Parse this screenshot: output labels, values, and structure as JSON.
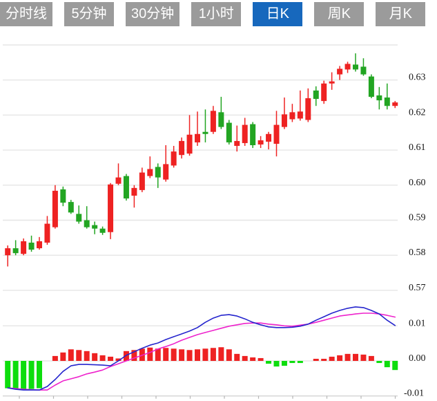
{
  "toolbar": {
    "active_index": 4,
    "tabs": [
      {
        "label": "分时线"
      },
      {
        "label": "5分钟"
      },
      {
        "label": "30分钟"
      },
      {
        "label": "1小时"
      },
      {
        "label": "日K"
      },
      {
        "label": "周K"
      },
      {
        "label": "月K"
      }
    ]
  },
  "colors": {
    "tab_inactive": "#9b9b9b",
    "tab_active": "#1768bd",
    "up": "#ee2222",
    "down": "#22a522",
    "hist_down": "#0ddd0d",
    "dif_line": "#2424cd",
    "dea_line": "#ee22cc",
    "gridline": "#e5e5e5",
    "axis_line": "#d8d8d8",
    "tick": "#b5b5b5",
    "axis_text": "#151515"
  },
  "chart_data": [
    {
      "type": "candlestick",
      "panel": "price",
      "title": "",
      "grid": "on",
      "legend_position": "none",
      "y_axis_side": "right",
      "y_gridline_values": [
        0.64,
        0.63,
        0.62,
        0.61,
        0.6,
        0.59,
        0.58,
        0.57
      ],
      "y_tick_labels": [
        "0.63",
        "0.62",
        "0.61",
        "0.60",
        "0.59",
        "0.58",
        "0.57"
      ],
      "y_tick_values": [
        0.63,
        0.62,
        0.61,
        0.6,
        0.59,
        0.58,
        0.57
      ],
      "ylim": [
        0.5655,
        0.6405
      ],
      "up_means": "close>=open is red (CN convention)",
      "candles": [
        {
          "o": 0.58,
          "h": 0.5828,
          "l": 0.5768,
          "c": 0.582
        },
        {
          "o": 0.582,
          "h": 0.5843,
          "l": 0.58,
          "c": 0.5806
        },
        {
          "o": 0.5804,
          "h": 0.5848,
          "l": 0.58,
          "c": 0.584
        },
        {
          "o": 0.5836,
          "h": 0.5856,
          "l": 0.581,
          "c": 0.5816
        },
        {
          "o": 0.582,
          "h": 0.5852,
          "l": 0.5816,
          "c": 0.584
        },
        {
          "o": 0.5836,
          "h": 0.5912,
          "l": 0.583,
          "c": 0.589
        },
        {
          "o": 0.588,
          "h": 0.6,
          "l": 0.5876,
          "c": 0.5984
        },
        {
          "o": 0.5988,
          "h": 0.5996,
          "l": 0.594,
          "c": 0.595
        },
        {
          "o": 0.5952,
          "h": 0.5958,
          "l": 0.5918,
          "c": 0.5922
        },
        {
          "o": 0.5918,
          "h": 0.5942,
          "l": 0.589,
          "c": 0.5896
        },
        {
          "o": 0.59,
          "h": 0.594,
          "l": 0.5876,
          "c": 0.588
        },
        {
          "o": 0.5886,
          "h": 0.5896,
          "l": 0.586,
          "c": 0.5876
        },
        {
          "o": 0.5876,
          "h": 0.5882,
          "l": 0.5858,
          "c": 0.5864
        },
        {
          "o": 0.5866,
          "h": 0.6006,
          "l": 0.5846,
          "c": 0.6002
        },
        {
          "o": 0.6004,
          "h": 0.6062,
          "l": 0.6,
          "c": 0.6022
        },
        {
          "o": 0.6026,
          "h": 0.6032,
          "l": 0.5956,
          "c": 0.5962
        },
        {
          "o": 0.597,
          "h": 0.6,
          "l": 0.5936,
          "c": 0.5992
        },
        {
          "o": 0.5986,
          "h": 0.605,
          "l": 0.598,
          "c": 0.6036
        },
        {
          "o": 0.6026,
          "h": 0.6082,
          "l": 0.602,
          "c": 0.6046
        },
        {
          "o": 0.6052,
          "h": 0.6062,
          "l": 0.5992,
          "c": 0.6022
        },
        {
          "o": 0.6016,
          "h": 0.6114,
          "l": 0.601,
          "c": 0.606
        },
        {
          "o": 0.6056,
          "h": 0.6112,
          "l": 0.605,
          "c": 0.6096
        },
        {
          "o": 0.6086,
          "h": 0.6136,
          "l": 0.6076,
          "c": 0.6126
        },
        {
          "o": 0.609,
          "h": 0.62,
          "l": 0.6084,
          "c": 0.6144
        },
        {
          "o": 0.6122,
          "h": 0.621,
          "l": 0.6112,
          "c": 0.6146
        },
        {
          "o": 0.6152,
          "h": 0.6216,
          "l": 0.6122,
          "c": 0.6146
        },
        {
          "o": 0.6152,
          "h": 0.6226,
          "l": 0.6146,
          "c": 0.6212
        },
        {
          "o": 0.6208,
          "h": 0.6252,
          "l": 0.616,
          "c": 0.6166
        },
        {
          "o": 0.6178,
          "h": 0.6186,
          "l": 0.6116,
          "c": 0.6122
        },
        {
          "o": 0.6112,
          "h": 0.617,
          "l": 0.6096,
          "c": 0.6126
        },
        {
          "o": 0.612,
          "h": 0.6192,
          "l": 0.6112,
          "c": 0.6172
        },
        {
          "o": 0.6174,
          "h": 0.618,
          "l": 0.6106,
          "c": 0.6114
        },
        {
          "o": 0.6116,
          "h": 0.614,
          "l": 0.6106,
          "c": 0.6128
        },
        {
          "o": 0.6124,
          "h": 0.6152,
          "l": 0.6102,
          "c": 0.6146
        },
        {
          "o": 0.6118,
          "h": 0.6212,
          "l": 0.6082,
          "c": 0.6172
        },
        {
          "o": 0.6166,
          "h": 0.625,
          "l": 0.616,
          "c": 0.6202
        },
        {
          "o": 0.6188,
          "h": 0.6232,
          "l": 0.618,
          "c": 0.6208
        },
        {
          "o": 0.619,
          "h": 0.627,
          "l": 0.6184,
          "c": 0.621
        },
        {
          "o": 0.6186,
          "h": 0.6276,
          "l": 0.618,
          "c": 0.6248
        },
        {
          "o": 0.627,
          "h": 0.6282,
          "l": 0.6226,
          "c": 0.6246
        },
        {
          "o": 0.624,
          "h": 0.6298,
          "l": 0.6232,
          "c": 0.629
        },
        {
          "o": 0.629,
          "h": 0.6322,
          "l": 0.6272,
          "c": 0.6296
        },
        {
          "o": 0.6316,
          "h": 0.634,
          "l": 0.63,
          "c": 0.6332
        },
        {
          "o": 0.633,
          "h": 0.6352,
          "l": 0.632,
          "c": 0.6346
        },
        {
          "o": 0.6344,
          "h": 0.6376,
          "l": 0.6324,
          "c": 0.633
        },
        {
          "o": 0.6338,
          "h": 0.6362,
          "l": 0.6312,
          "c": 0.6316
        },
        {
          "o": 0.631,
          "h": 0.6316,
          "l": 0.6248,
          "c": 0.6252
        },
        {
          "o": 0.6256,
          "h": 0.628,
          "l": 0.6216,
          "c": 0.6242
        },
        {
          "o": 0.625,
          "h": 0.629,
          "l": 0.6216,
          "c": 0.6226
        },
        {
          "o": 0.6226,
          "h": 0.624,
          "l": 0.622,
          "c": 0.6236
        }
      ]
    },
    {
      "type": "macd",
      "panel": "indicator",
      "grid": "on",
      "y_axis_side": "right",
      "y_tick_labels": [
        "0.01",
        "0.00",
        "-0.01"
      ],
      "y_tick_values": [
        0.01,
        0.0,
        -0.01
      ],
      "ylim": [
        -0.011,
        0.016
      ],
      "histogram": [
        -0.0078,
        -0.008,
        -0.0082,
        -0.008,
        -0.0078,
        0.0,
        0.0014,
        0.0024,
        0.0033,
        0.0031,
        0.0028,
        0.0022,
        0.0016,
        0.0012,
        0.0007,
        0.0028,
        0.0031,
        0.0035,
        0.0038,
        0.0035,
        0.0037,
        0.0035,
        0.0033,
        0.0031,
        0.0033,
        0.0035,
        0.0037,
        0.0039,
        0.0033,
        0.002,
        0.0014,
        0.001,
        0.0008,
        -0.0008,
        -0.0016,
        -0.0014,
        -0.0006,
        -0.0006,
        -0.0002,
        0.0006,
        0.0006,
        0.0012,
        0.0016,
        0.002,
        0.002,
        0.0018,
        0.0014,
        -0.0006,
        -0.0018,
        -0.0026
      ],
      "dif": [
        -0.0077,
        -0.0081,
        -0.0083,
        -0.0083,
        -0.0083,
        -0.0073,
        -0.0053,
        -0.003,
        -0.0014,
        -0.001,
        -0.001,
        -0.0011,
        -0.0012,
        -0.0014,
        0.0,
        0.0016,
        0.0026,
        0.0036,
        0.0045,
        0.0051,
        0.0061,
        0.0069,
        0.0077,
        0.0085,
        0.0095,
        0.011,
        0.0122,
        0.013,
        0.0132,
        0.0128,
        0.012,
        0.011,
        0.0103,
        0.0097,
        0.0095,
        0.0095,
        0.0096,
        0.0099,
        0.0105,
        0.0116,
        0.0126,
        0.0136,
        0.0144,
        0.015,
        0.0154,
        0.0152,
        0.0144,
        0.0134,
        0.0116,
        0.0101
      ],
      "dea": [
        -0.0077,
        -0.0079,
        -0.0081,
        -0.0082,
        -0.0083,
        -0.0083,
        -0.0069,
        -0.0057,
        -0.0051,
        -0.0045,
        -0.0037,
        -0.0032,
        -0.0026,
        -0.0016,
        -0.0008,
        0.0,
        0.0008,
        0.0016,
        0.0024,
        0.0034,
        0.0041,
        0.0049,
        0.0059,
        0.0067,
        0.0075,
        0.0081,
        0.0087,
        0.0093,
        0.0099,
        0.0103,
        0.0107,
        0.0108,
        0.0108,
        0.0105,
        0.0103,
        0.01,
        0.0099,
        0.0102,
        0.0105,
        0.011,
        0.0116,
        0.0122,
        0.0128,
        0.0131,
        0.0134,
        0.0136,
        0.0136,
        0.0134,
        0.013,
        0.0125
      ]
    }
  ]
}
